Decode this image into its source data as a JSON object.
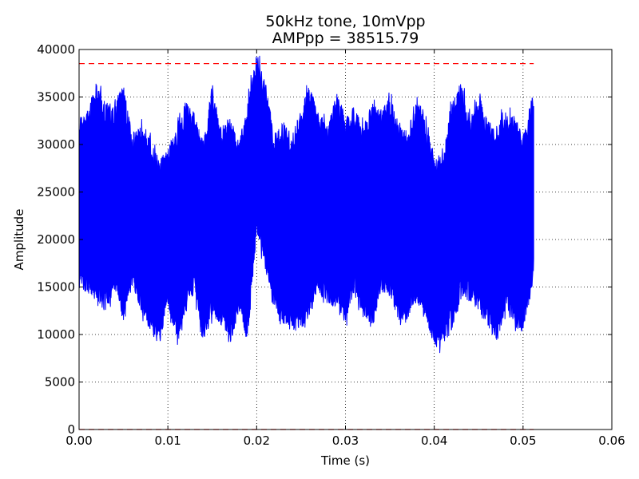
{
  "chart_data": {
    "type": "line",
    "title": "50kHz tone, 10mVpp",
    "subtitle": "AMPpp = 38515.79",
    "xlabel": "Time (s)",
    "ylabel": "Amplitude",
    "xlim": [
      0.0,
      0.06
    ],
    "ylim": [
      0,
      40000
    ],
    "xticks": [
      0.0,
      0.01,
      0.02,
      0.03,
      0.04,
      0.05,
      0.06
    ],
    "xtick_labels": [
      "0.00",
      "0.01",
      "0.02",
      "0.03",
      "0.04",
      "0.05",
      "0.06"
    ],
    "yticks": [
      0,
      5000,
      10000,
      15000,
      20000,
      25000,
      30000,
      35000,
      40000
    ],
    "ytick_labels": [
      "0",
      "5000",
      "10000",
      "15000",
      "20000",
      "25000",
      "30000",
      "35000",
      "40000"
    ],
    "grid": true,
    "signal_color": "#0000ff",
    "reference_color": "#ff0000",
    "series": [
      {
        "style": "filled-envelope",
        "x": [
          0.0,
          0.001,
          0.002,
          0.003,
          0.004,
          0.005,
          0.006,
          0.007,
          0.008,
          0.009,
          0.01,
          0.011,
          0.012,
          0.013,
          0.014,
          0.015,
          0.016,
          0.017,
          0.018,
          0.019,
          0.02,
          0.021,
          0.022,
          0.023,
          0.024,
          0.025,
          0.026,
          0.027,
          0.028,
          0.029,
          0.03,
          0.031,
          0.032,
          0.033,
          0.034,
          0.035,
          0.036,
          0.037,
          0.038,
          0.039,
          0.04,
          0.041,
          0.042,
          0.043,
          0.044,
          0.045,
          0.046,
          0.047,
          0.048,
          0.049,
          0.05,
          0.051,
          0.0512
        ],
        "upper": [
          33000,
          33800,
          36800,
          34500,
          34200,
          36800,
          31000,
          32000,
          30500,
          28500,
          29800,
          32000,
          34800,
          33500,
          30500,
          36500,
          31800,
          33000,
          30500,
          34500,
          39800,
          36500,
          31200,
          32500,
          31000,
          33800,
          36500,
          33500,
          32000,
          35500,
          33000,
          34000,
          32000,
          34500,
          33800,
          35000,
          32500,
          31000,
          35500,
          32500,
          29000,
          29000,
          34500,
          36500,
          33000,
          35500,
          32500,
          32000,
          33500,
          33000,
          31000,
          35000,
          34500
        ],
        "lower": [
          14500,
          14500,
          13000,
          12500,
          14500,
          11000,
          15000,
          12500,
          10000,
          9000,
          13000,
          9500,
          12000,
          14500,
          9000,
          12000,
          11000,
          8800,
          12500,
          9000,
          21000,
          16500,
          12000,
          10500,
          10500,
          10000,
          12000,
          14500,
          13000,
          12500,
          11000,
          14500,
          11500,
          10500,
          14500,
          14000,
          11500,
          11500,
          13500,
          11500,
          8800,
          8800,
          10500,
          13500,
          13500,
          12500,
          11000,
          9000,
          12500,
          10500,
          10500,
          14500,
          16500
        ]
      },
      {
        "style": "dashed-reference",
        "x": [
          0.0,
          0.0512
        ],
        "y": [
          38515.79,
          38515.79
        ]
      },
      {
        "style": "dashed-reference",
        "x": [
          0.0,
          0.0512
        ],
        "y": [
          0,
          0
        ]
      }
    ]
  }
}
